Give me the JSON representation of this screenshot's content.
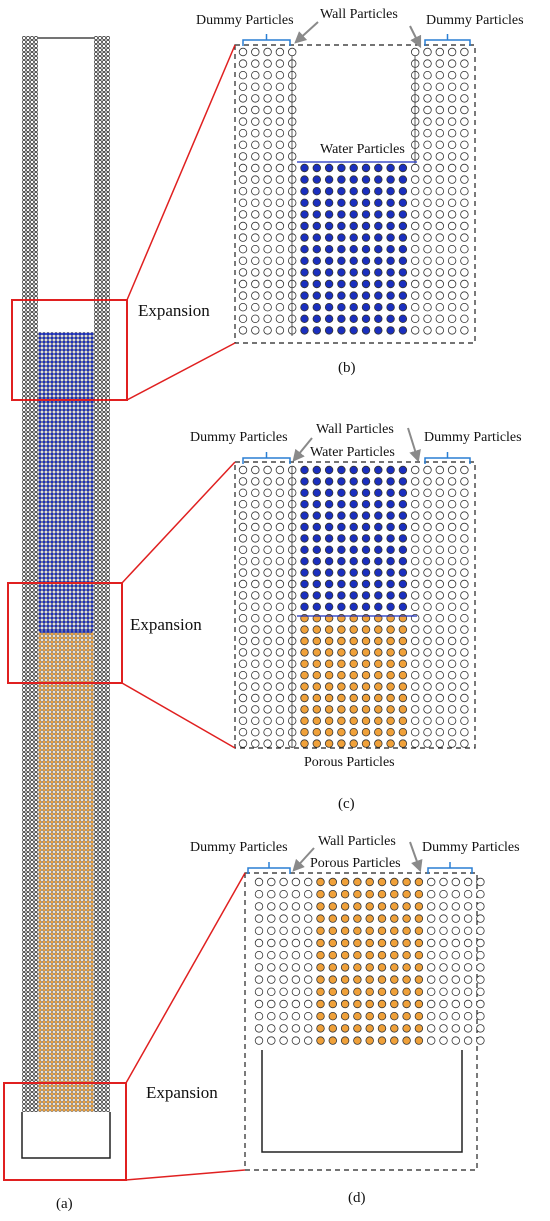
{
  "labels": {
    "dummy": "Dummy Particles",
    "wall": "Wall Particles",
    "water": "Water Particles",
    "porous": "Porous Particles",
    "expansion": "Expansion"
  },
  "captions": {
    "a": "(a)",
    "b": "(b)",
    "c": "(c)",
    "d": "(d)"
  },
  "colors": {
    "water": "#1a2fbf",
    "porous": "#f0a13a",
    "highlight": "#e02020",
    "bracket": "#2a7fd4",
    "arrow": "#8a8a8a",
    "dummy_wall": "#ffffff"
  }
}
